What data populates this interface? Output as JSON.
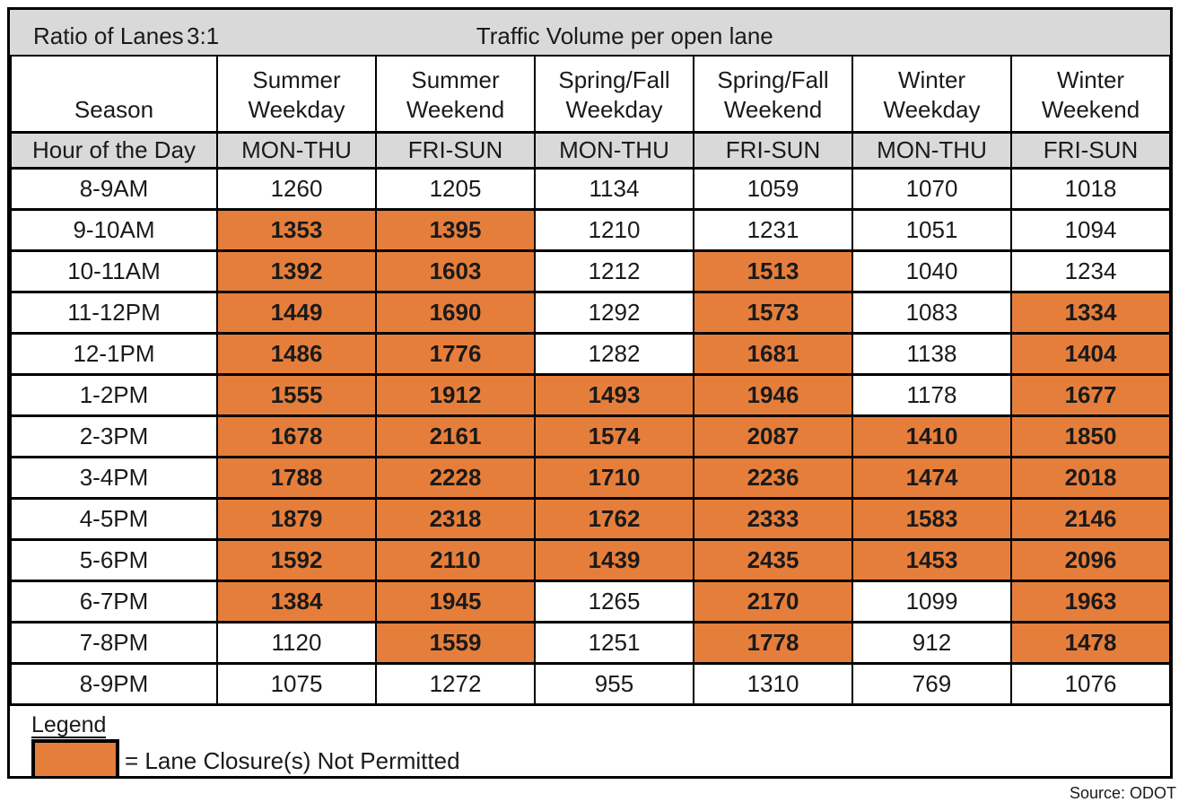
{
  "chart_data": {
    "type": "table",
    "title": "Traffic Volume per open lane",
    "ratio_label": "Ratio of Lanes",
    "ratio_value": "3:1",
    "season_header_label": "Season",
    "hour_header_label": "Hour of the Day",
    "column_groups": [
      {
        "line1": "Summer",
        "line2": "Weekday",
        "days": "MON-THU"
      },
      {
        "line1": "Summer",
        "line2": "Weekend",
        "days": "FRI-SUN"
      },
      {
        "line1": "Spring/Fall",
        "line2": "Weekday",
        "days": "MON-THU"
      },
      {
        "line1": "Spring/Fall",
        "line2": "Weekend",
        "days": "FRI-SUN"
      },
      {
        "line1": "Winter",
        "line2": "Weekday",
        "days": "MON-THU"
      },
      {
        "line1": "Winter",
        "line2": "Weekend",
        "days": "FRI-SUN"
      }
    ],
    "rows": [
      {
        "hour": "8-9AM",
        "values": [
          1260,
          1205,
          1134,
          1059,
          1070,
          1018
        ],
        "closed": [
          false,
          false,
          false,
          false,
          false,
          false
        ]
      },
      {
        "hour": "9-10AM",
        "values": [
          1353,
          1395,
          1210,
          1231,
          1051,
          1094
        ],
        "closed": [
          true,
          true,
          false,
          false,
          false,
          false
        ]
      },
      {
        "hour": "10-11AM",
        "values": [
          1392,
          1603,
          1212,
          1513,
          1040,
          1234
        ],
        "closed": [
          true,
          true,
          false,
          true,
          false,
          false
        ]
      },
      {
        "hour": "11-12PM",
        "values": [
          1449,
          1690,
          1292,
          1573,
          1083,
          1334
        ],
        "closed": [
          true,
          true,
          false,
          true,
          false,
          true
        ]
      },
      {
        "hour": "12-1PM",
        "values": [
          1486,
          1776,
          1282,
          1681,
          1138,
          1404
        ],
        "closed": [
          true,
          true,
          false,
          true,
          false,
          true
        ]
      },
      {
        "hour": "1-2PM",
        "values": [
          1555,
          1912,
          1493,
          1946,
          1178,
          1677
        ],
        "closed": [
          true,
          true,
          true,
          true,
          false,
          true
        ]
      },
      {
        "hour": "2-3PM",
        "values": [
          1678,
          2161,
          1574,
          2087,
          1410,
          1850
        ],
        "closed": [
          true,
          true,
          true,
          true,
          true,
          true
        ]
      },
      {
        "hour": "3-4PM",
        "values": [
          1788,
          2228,
          1710,
          2236,
          1474,
          2018
        ],
        "closed": [
          true,
          true,
          true,
          true,
          true,
          true
        ]
      },
      {
        "hour": "4-5PM",
        "values": [
          1879,
          2318,
          1762,
          2333,
          1583,
          2146
        ],
        "closed": [
          true,
          true,
          true,
          true,
          true,
          true
        ]
      },
      {
        "hour": "5-6PM",
        "values": [
          1592,
          2110,
          1439,
          2435,
          1453,
          2096
        ],
        "closed": [
          true,
          true,
          true,
          true,
          true,
          true
        ]
      },
      {
        "hour": "6-7PM",
        "values": [
          1384,
          1945,
          1265,
          2170,
          1099,
          1963
        ],
        "closed": [
          true,
          true,
          false,
          true,
          false,
          true
        ]
      },
      {
        "hour": "7-8PM",
        "values": [
          1120,
          1559,
          1251,
          1778,
          912,
          1478
        ],
        "closed": [
          false,
          true,
          false,
          true,
          false,
          true
        ]
      },
      {
        "hour": "8-9PM",
        "values": [
          1075,
          1272,
          955,
          1310,
          769,
          1076
        ],
        "closed": [
          false,
          false,
          false,
          false,
          false,
          false
        ]
      }
    ],
    "legend": {
      "title": "Legend",
      "closure_label": "= Lane Closure(s) Not Permitted"
    },
    "source": "Source: ODOT",
    "colors": {
      "closure_fill": "#E67E3B",
      "header_fill": "#D9D9D9",
      "border": "#000000"
    }
  }
}
